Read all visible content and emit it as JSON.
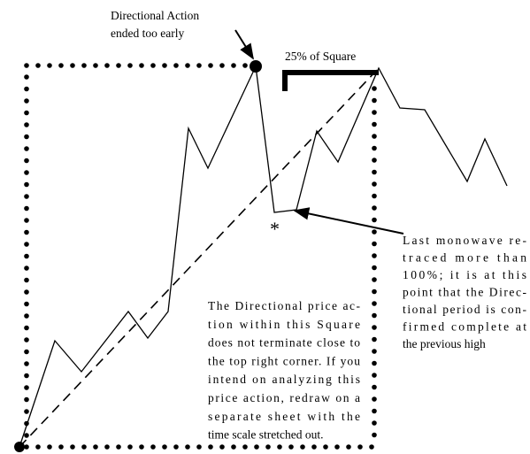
{
  "top_note": {
    "lines": [
      "Directional Action",
      "ended too early"
    ]
  },
  "bracket_label": "25% of Square",
  "star": "*",
  "right_note": {
    "lines": [
      "Last monowave re-",
      "traced more than",
      "100%; it is at this",
      "point that the Direc-",
      "tional period is con-",
      "firmed complete at",
      "the previous high"
    ]
  },
  "center_note": {
    "lines": [
      "The Directional price ac-",
      "tion within this Square",
      "does not terminate close to",
      "the top right corner. If you",
      "intend on analyzing this",
      "price action, redraw on a",
      "separate sheet with the",
      "time scale stretched out."
    ]
  }
}
